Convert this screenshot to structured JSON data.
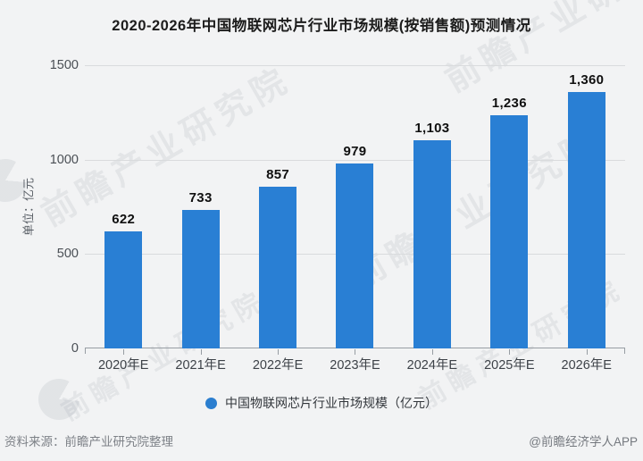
{
  "title": "2020-2026年中国物联网芯片行业市场规模(按销售额)预测情况",
  "chart_data": {
    "type": "bar",
    "categories": [
      "2020年E",
      "2021年E",
      "2022年E",
      "2023年E",
      "2024年E",
      "2025年E",
      "2026年E"
    ],
    "values": [
      622,
      733,
      857,
      979,
      1103,
      1236,
      1360
    ],
    "value_labels": [
      "622",
      "733",
      "857",
      "979",
      "1,103",
      "1,236",
      "1,360"
    ],
    "title": "2020-2026年中国物联网芯片行业市场规模(按销售额)预测情况",
    "xlabel": "",
    "ylabel": "单位：亿元",
    "yticks": [
      "1500",
      "1000",
      "500",
      "0"
    ],
    "ylim": [
      0,
      1500
    ],
    "grid": "horizontal",
    "bar_color": "#297fd4",
    "legend": {
      "label": "中国物联网芯片行业市场规模（亿元）",
      "position": "bottom",
      "marker_color": "#2b7ecf"
    }
  },
  "watermark": {
    "text": "前瞻产业研究院"
  },
  "footer": {
    "source": "资料来源：前瞻产业研究院整理",
    "credit": "@前瞻经济学人APP"
  },
  "colors": {
    "background": "#f2f3f4",
    "bar": "#297fd4",
    "gridline": "#d9dbdd",
    "axis": "#979da3",
    "title_text": "#1c1c1c",
    "footer_text": "#7d8187",
    "watermark": "rgba(150,158,168,0.16)"
  }
}
